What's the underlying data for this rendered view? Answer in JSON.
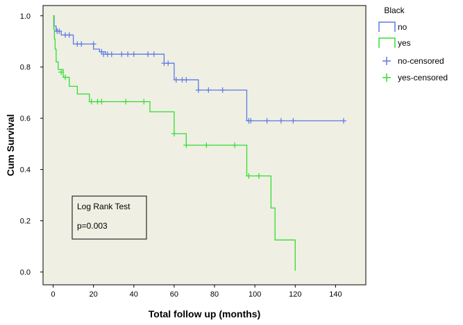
{
  "chart_data": {
    "type": "line",
    "subtype": "kaplan-meier-step",
    "xlabel": "Total follow up (months)",
    "ylabel": "Cum Survival",
    "xlim": [
      -5,
      155
    ],
    "ylim": [
      -0.05,
      1.04
    ],
    "xticks": [
      0,
      20,
      40,
      60,
      80,
      100,
      120,
      140
    ],
    "yticks": [
      0.0,
      0.2,
      0.4,
      0.6,
      0.8,
      1.0
    ],
    "xtick_labels": [
      "0",
      "20",
      "40",
      "60",
      "80",
      "100",
      "120",
      "140"
    ],
    "ytick_labels": [
      "0.0",
      "0.2",
      "0.4",
      "0.6",
      "0.8",
      "1.0"
    ],
    "plot_background": "#efefe3",
    "legend": {
      "title": "Black",
      "placement": "outside-right-top",
      "entries": [
        "no",
        "yes",
        "no-censored",
        "yes-censored"
      ]
    },
    "series": [
      {
        "name": "no",
        "color": "#5b79e6",
        "steps": [
          [
            0,
            1.0
          ],
          [
            0.5,
            0.96
          ],
          [
            1.5,
            0.94
          ],
          [
            4,
            0.925
          ],
          [
            10,
            0.89
          ],
          [
            20,
            0.87
          ],
          [
            23,
            0.86
          ],
          [
            26,
            0.85
          ],
          [
            55,
            0.815
          ],
          [
            60,
            0.75
          ],
          [
            72,
            0.71
          ],
          [
            96,
            0.59
          ],
          [
            144,
            0.59
          ]
        ],
        "censored": [
          [
            2,
            0.94
          ],
          [
            3,
            0.94
          ],
          [
            6,
            0.925
          ],
          [
            8,
            0.925
          ],
          [
            12,
            0.89
          ],
          [
            14,
            0.89
          ],
          [
            20,
            0.89
          ],
          [
            24,
            0.86
          ],
          [
            25,
            0.85
          ],
          [
            27,
            0.85
          ],
          [
            29,
            0.85
          ],
          [
            34,
            0.85
          ],
          [
            37,
            0.85
          ],
          [
            40,
            0.85
          ],
          [
            47,
            0.85
          ],
          [
            50,
            0.85
          ],
          [
            55,
            0.815
          ],
          [
            57,
            0.815
          ],
          [
            61,
            0.75
          ],
          [
            64,
            0.75
          ],
          [
            66,
            0.75
          ],
          [
            72,
            0.71
          ],
          [
            77,
            0.71
          ],
          [
            84,
            0.71
          ],
          [
            97,
            0.59
          ],
          [
            98,
            0.59
          ],
          [
            106,
            0.59
          ],
          [
            113,
            0.59
          ],
          [
            119,
            0.59
          ],
          [
            144,
            0.59
          ]
        ]
      },
      {
        "name": "yes",
        "color": "#33dd33",
        "steps": [
          [
            0,
            1.0
          ],
          [
            0.3,
            0.95
          ],
          [
            0.6,
            0.91
          ],
          [
            1,
            0.87
          ],
          [
            1.5,
            0.82
          ],
          [
            2.5,
            0.79
          ],
          [
            5,
            0.76
          ],
          [
            8,
            0.725
          ],
          [
            12,
            0.695
          ],
          [
            18,
            0.665
          ],
          [
            48,
            0.625
          ],
          [
            60,
            0.54
          ],
          [
            66,
            0.495
          ],
          [
            96,
            0.375
          ],
          [
            108,
            0.25
          ],
          [
            110,
            0.125
          ],
          [
            120,
            0.005
          ]
        ],
        "censored": [
          [
            4,
            0.78
          ],
          [
            6,
            0.76
          ],
          [
            19,
            0.665
          ],
          [
            22,
            0.665
          ],
          [
            24,
            0.665
          ],
          [
            36,
            0.665
          ],
          [
            45,
            0.665
          ],
          [
            60,
            0.54
          ],
          [
            66,
            0.495
          ],
          [
            76,
            0.495
          ],
          [
            90,
            0.495
          ],
          [
            97,
            0.375
          ],
          [
            102,
            0.375
          ]
        ]
      }
    ],
    "annotations": [
      {
        "label": "Log Rank Test",
        "text": "p=0.003"
      }
    ]
  }
}
